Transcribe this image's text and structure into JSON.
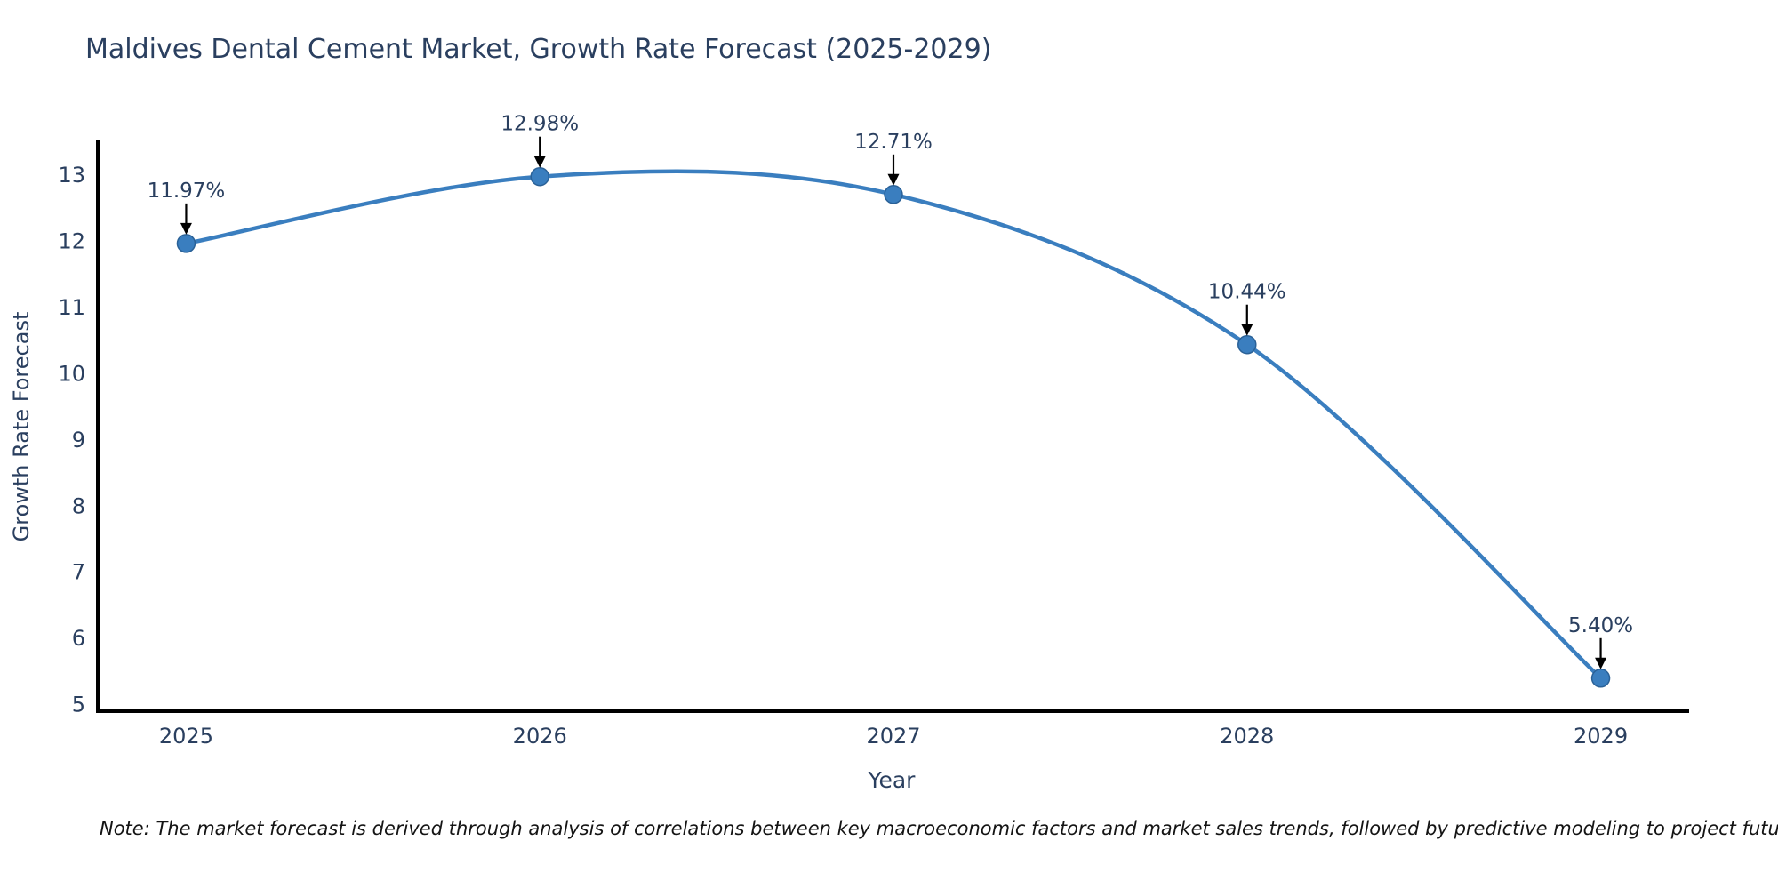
{
  "chart_data": {
    "type": "line",
    "title": "Maldives Dental Cement Market, Growth Rate Forecast (2025-2029)",
    "x": [
      2025,
      2026,
      2027,
      2028,
      2029
    ],
    "values": [
      11.97,
      12.98,
      12.71,
      10.44,
      5.4
    ],
    "point_labels": [
      "11.97%",
      "12.98%",
      "12.71%",
      "10.44%",
      "5.40%"
    ],
    "xlabel": "Year",
    "ylabel": "Growth Rate Forecast",
    "xticks": [
      "2025",
      "2026",
      "2027",
      "2028",
      "2029"
    ],
    "yticks": [
      5,
      6,
      7,
      8,
      9,
      10,
      11,
      12,
      13
    ],
    "xlim": [
      2024.75,
      2029.25
    ],
    "ylim": [
      4.9,
      13.5
    ],
    "line_shape": "spline",
    "grid": false,
    "legend": "none",
    "note": "Note: The market forecast is derived through analysis of correlations between key macroeconomic factors and market sales trends, followed by predictive modeling to project future sales",
    "colors": {
      "line": "#3a7ebf",
      "marker": "#3a7ebf",
      "marker_edge": "#2a6197",
      "axis": "#000000",
      "tick_text": "#2a3f5f",
      "annotation_text": "#2a3f5f",
      "arrow": "#000000",
      "title_text": "#2a3f5f",
      "note_text": "#141414",
      "background": "#ffffff"
    }
  }
}
